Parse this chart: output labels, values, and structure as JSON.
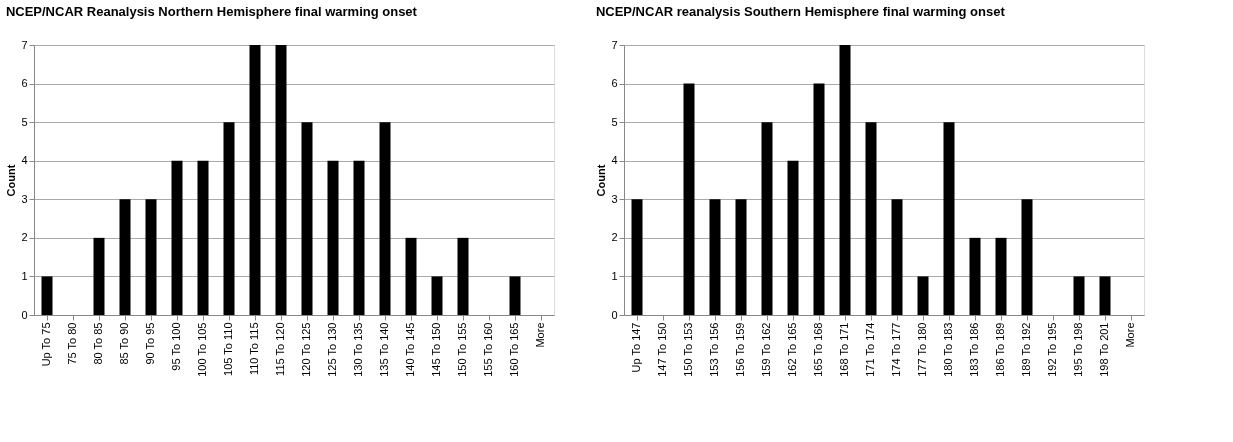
{
  "chart_data": [
    {
      "type": "bar",
      "title": "NCEP/NCAR Reanalysis Northern Hemisphere final warming onset",
      "ylabel": "Count",
      "categories": [
        "Up To 75",
        "75 To 80",
        "80 To 85",
        "85 To 90",
        "90 To 95",
        "95 To 100",
        "100 To 105",
        "105 To 110",
        "110 To 115",
        "115 To 120",
        "120 To 125",
        "125 To 130",
        "130 To 135",
        "135 To 140",
        "140 To 145",
        "145 To 150",
        "150 To 155",
        "155 To 160",
        "160 To 165",
        "More"
      ],
      "values": [
        1,
        0,
        2,
        3,
        3,
        4,
        4,
        5,
        7,
        7,
        5,
        4,
        4,
        5,
        2,
        1,
        2,
        0,
        1,
        0
      ],
      "color": "#000000",
      "ylim": [
        0,
        7
      ],
      "yticks": [
        0,
        1,
        2,
        3,
        4,
        5,
        6,
        7
      ],
      "grid": "y"
    },
    {
      "type": "bar",
      "title": "NCEP/NCAR reanalysis Southern Hemisphere final warming onset",
      "ylabel": "Count",
      "categories": [
        "Up To 147",
        "147 To 150",
        "150 To 153",
        "153 To 156",
        "156 To 159",
        "159 To 162",
        "162 To 165",
        "165 To 168",
        "168 To 171",
        "171 To 174",
        "174 To 177",
        "177 To 180",
        "180 To 183",
        "183 To 186",
        "186 To 189",
        "189 To 192",
        "192 To 195",
        "195 To 198",
        "198 To 201",
        "More"
      ],
      "values": [
        3,
        0,
        6,
        3,
        3,
        5,
        4,
        6,
        7,
        5,
        3,
        1,
        5,
        2,
        2,
        3,
        0,
        1,
        1,
        0
      ],
      "color": "#000000",
      "ylim": [
        0,
        7
      ],
      "yticks": [
        0,
        1,
        2,
        3,
        4,
        5,
        6,
        7
      ],
      "grid": "y"
    }
  ]
}
